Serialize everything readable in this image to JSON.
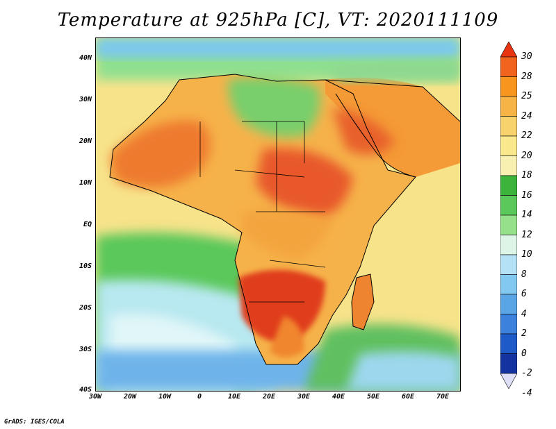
{
  "title": "Temperature at 925hPa [C], VT: 2020111109",
  "credit": "GrADS: IGES/COLA",
  "axes": {
    "lat_labels": [
      "40N",
      "30N",
      "20N",
      "10N",
      "EQ",
      "10S",
      "20S",
      "30S",
      "40S"
    ],
    "lon_labels": [
      "30W",
      "20W",
      "10W",
      "0",
      "10E",
      "20E",
      "30E",
      "40E",
      "50E",
      "60E",
      "70E"
    ],
    "lat_range": [
      -40,
      45
    ],
    "lon_range": [
      -30,
      75
    ]
  },
  "colorbar": {
    "labels": [
      "30",
      "28",
      "25",
      "24",
      "22",
      "20",
      "18",
      "16",
      "14",
      "12",
      "10",
      "8",
      "6",
      "4",
      "2",
      "0",
      "-2",
      "-4"
    ],
    "colors": [
      "#e83410",
      "#f0641e",
      "#f6961e",
      "#f7b446",
      "#f8d26c",
      "#fae88c",
      "#f7f0b0",
      "#3cb43c",
      "#5ac85a",
      "#96e08c",
      "#dcf5e6",
      "#b4e1f5",
      "#82c8f0",
      "#5aa5e6",
      "#3c82dc",
      "#1e5ac8",
      "#1432a0",
      "#0a1464"
    ]
  }
}
